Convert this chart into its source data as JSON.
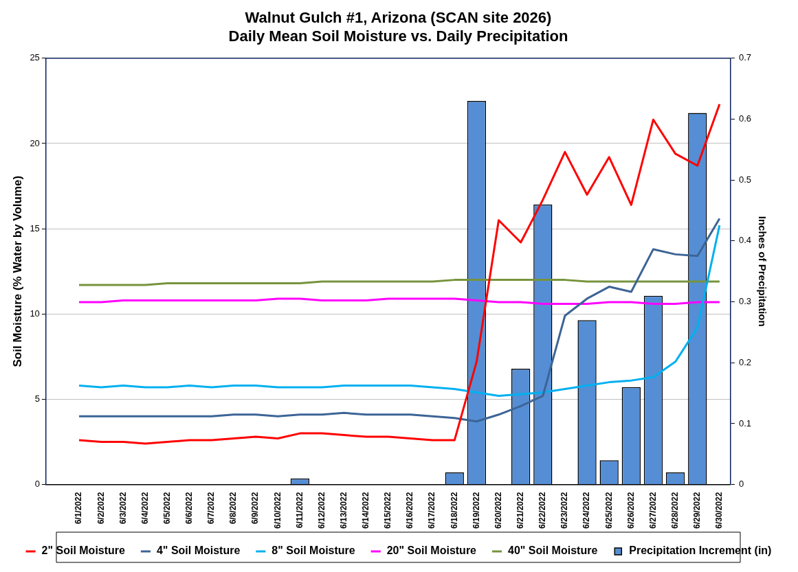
{
  "chart_data": {
    "type": "line",
    "title": "Walnut Gulch #1, Arizona (SCAN site 2026)",
    "subtitle": "Daily Mean Soil Moisture vs. Daily Precipitation",
    "ylabel": "Soil Moisture (% Water by Volume)",
    "y2label": "Inches of Precipitation",
    "categories": [
      null,
      "6/1/2022",
      "6/2/2022",
      "6/3/2022",
      "6/4/2022",
      "6/5/2022",
      "6/6/2022",
      "6/7/2022",
      "6/8/2022",
      "6/9/2022",
      "6/10/2022",
      "6/11/2022",
      "6/12/2022",
      "6/13/2022",
      "6/14/2022",
      "6/15/2022",
      "6/16/2022",
      "6/17/2022",
      "6/18/2022",
      "6/19/2022",
      "6/20/2022",
      "6/21/2022",
      "6/22/2022",
      "6/23/2022",
      "6/24/2022",
      "6/25/2022",
      "6/26/2022",
      "6/27/2022",
      "6/28/2022",
      "6/29/2022",
      "6/30/2022"
    ],
    "series": [
      {
        "name": "Precipitation Increment (in)",
        "type": "bar",
        "axis": "y2",
        "color": "#558ed5",
        "values": [
          null,
          0,
          0,
          0,
          0,
          0,
          0,
          0,
          0,
          0,
          0,
          0.01,
          0,
          0,
          0,
          0,
          0,
          0,
          0.02,
          0.63,
          0,
          0.19,
          0.46,
          0,
          0.27,
          0.04,
          0.16,
          0.31,
          0.02,
          0.61,
          0
        ]
      },
      {
        "name": "2\" Soil Moisture",
        "color": "#ff0000",
        "values": [
          null,
          2.6,
          2.5,
          2.5,
          2.4,
          2.5,
          2.6,
          2.6,
          2.7,
          2.8,
          2.7,
          3.0,
          3.0,
          2.9,
          2.8,
          2.8,
          2.7,
          2.6,
          2.6,
          7.2,
          15.5,
          14.2,
          16.7,
          19.5,
          17.0,
          19.2,
          16.4,
          21.4,
          19.4,
          18.7,
          22.3
        ]
      },
      {
        "name": "4\" Soil Moisture",
        "color": "#3c6496",
        "values": [
          null,
          4.0,
          4.0,
          4.0,
          4.0,
          4.0,
          4.0,
          4.0,
          4.1,
          4.1,
          4.0,
          4.1,
          4.1,
          4.2,
          4.1,
          4.1,
          4.1,
          4.0,
          3.9,
          3.7,
          4.1,
          4.6,
          5.2,
          9.9,
          10.9,
          11.6,
          11.3,
          13.8,
          13.5,
          13.4,
          15.6
        ]
      },
      {
        "name": "8\" Soil Moisture",
        "color": "#00b0f0",
        "values": [
          null,
          5.8,
          5.7,
          5.8,
          5.7,
          5.7,
          5.8,
          5.7,
          5.8,
          5.8,
          5.7,
          5.7,
          5.7,
          5.8,
          5.8,
          5.8,
          5.8,
          5.7,
          5.6,
          5.4,
          5.2,
          5.3,
          5.4,
          5.6,
          5.8,
          6.0,
          6.1,
          6.3,
          7.2,
          9.2,
          15.2
        ]
      },
      {
        "name": "20\" Soil Moisture",
        "color": "#ff00ff",
        "values": [
          null,
          10.7,
          10.7,
          10.8,
          10.8,
          10.8,
          10.8,
          10.8,
          10.8,
          10.8,
          10.9,
          10.9,
          10.8,
          10.8,
          10.8,
          10.9,
          10.9,
          10.9,
          10.9,
          10.8,
          10.7,
          10.7,
          10.6,
          10.6,
          10.6,
          10.7,
          10.7,
          10.6,
          10.6,
          10.7,
          10.7
        ]
      },
      {
        "name": "40\" Soil Moisture",
        "color": "#77933c",
        "values": [
          null,
          11.7,
          11.7,
          11.7,
          11.7,
          11.8,
          11.8,
          11.8,
          11.8,
          11.8,
          11.8,
          11.8,
          11.9,
          11.9,
          11.9,
          11.9,
          11.9,
          11.9,
          12.0,
          12.0,
          12.0,
          12.0,
          12.0,
          12.0,
          11.9,
          11.9,
          11.9,
          11.9,
          11.9,
          11.9,
          11.9
        ]
      }
    ],
    "ylim": [
      0,
      25
    ],
    "yticks": [
      0,
      5,
      10,
      15,
      20,
      25
    ],
    "y2lim": [
      0,
      0.7
    ],
    "y2ticks": [
      0,
      0.1,
      0.2,
      0.3,
      0.4,
      0.5,
      0.6,
      0.7
    ],
    "grid": "y",
    "legend": "bottom"
  }
}
